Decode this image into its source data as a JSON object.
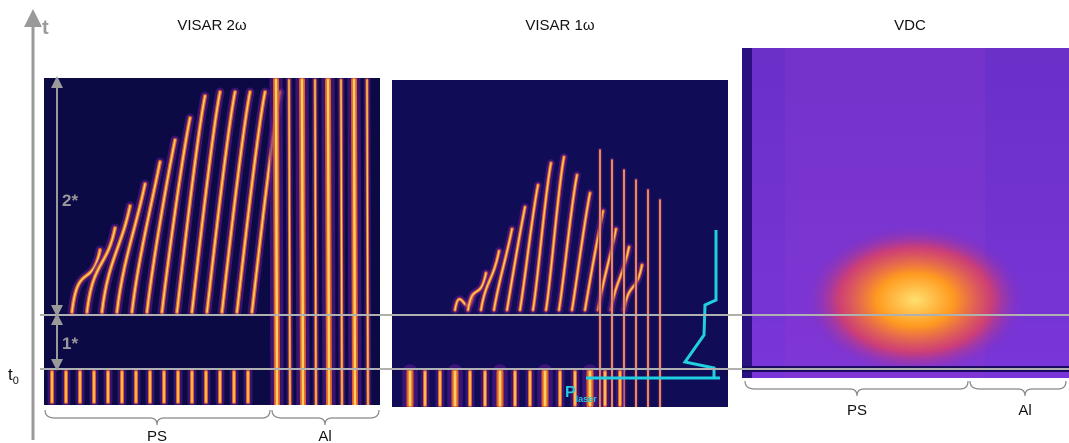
{
  "axis": {
    "label": "t",
    "t0": {
      "base": "t",
      "sub": "0"
    }
  },
  "intervals": [
    "2*",
    "1*"
  ],
  "panels": [
    {
      "title": "VISAR 2ω",
      "regions": [
        "PS",
        "Al"
      ]
    },
    {
      "title": "VISAR 1ω",
      "annotation": {
        "base": "P",
        "sub": "laser"
      }
    },
    {
      "title": "VDC",
      "regions": [
        "PS",
        "Al"
      ]
    }
  ]
}
